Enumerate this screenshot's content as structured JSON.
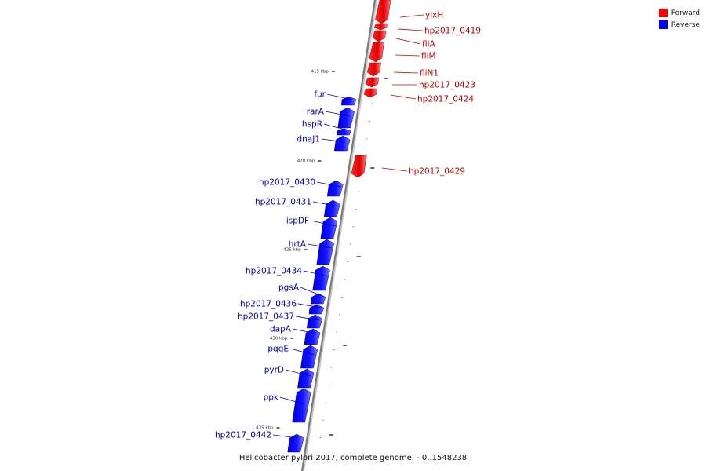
{
  "legend": {
    "forward_label": "Forward",
    "reverse_label": "Reverse",
    "forward_color": "#ff0000",
    "reverse_color": "#0000ff"
  },
  "caption": "Helicobacter pylori 2017, complete genome. - 0..1548238",
  "ticks": [
    {
      "label": "415 kbp",
      "kbp": 415
    },
    {
      "label": "420 kbp",
      "kbp": 420
    },
    {
      "label": "425 kbp",
      "kbp": 425
    },
    {
      "label": "430 kbp",
      "kbp": 430
    },
    {
      "label": "435 kbp",
      "kbp": 435
    }
  ],
  "features": [
    {
      "name": "ylxH",
      "strand": "forward"
    },
    {
      "name": "hp2017_0419",
      "strand": "forward"
    },
    {
      "name": "fliA",
      "strand": "forward"
    },
    {
      "name": "fliM",
      "strand": "forward"
    },
    {
      "name": "fliN1",
      "strand": "forward"
    },
    {
      "name": "hp2017_0423",
      "strand": "forward"
    },
    {
      "name": "hp2017_0424",
      "strand": "forward"
    },
    {
      "name": "fur",
      "strand": "reverse"
    },
    {
      "name": "rarA",
      "strand": "reverse"
    },
    {
      "name": "hspR",
      "strand": "reverse"
    },
    {
      "name": "dnaJ1",
      "strand": "reverse"
    },
    {
      "name": "hp2017_0429",
      "strand": "forward"
    },
    {
      "name": "hp2017_0430",
      "strand": "reverse"
    },
    {
      "name": "hp2017_0431",
      "strand": "reverse"
    },
    {
      "name": "ispDF",
      "strand": "reverse"
    },
    {
      "name": "hrtA",
      "strand": "reverse"
    },
    {
      "name": "hp2017_0434",
      "strand": "reverse"
    },
    {
      "name": "pgsA",
      "strand": "reverse"
    },
    {
      "name": "hp2017_0436",
      "strand": "reverse"
    },
    {
      "name": "hp2017_0437",
      "strand": "reverse"
    },
    {
      "name": "dapA",
      "strand": "reverse"
    },
    {
      "name": "pqqE",
      "strand": "reverse"
    },
    {
      "name": "pyrD",
      "strand": "reverse"
    },
    {
      "name": "ppk",
      "strand": "reverse"
    },
    {
      "name": "hp2017_0442",
      "strand": "reverse"
    }
  ]
}
